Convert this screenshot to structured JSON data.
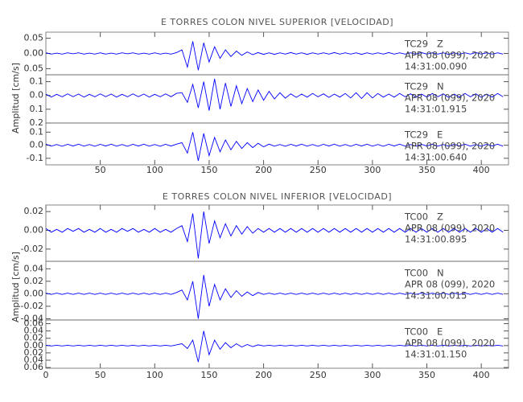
{
  "chart_data": [
    {
      "type": "line",
      "title": "E TORRES COLON NIVEL SUPERIOR [VELOCIDAD]",
      "y_label": "Amplitud [cm/s]",
      "xlim": [
        0,
        425
      ],
      "xticks": [
        50,
        100,
        150,
        200,
        250,
        300,
        350,
        400
      ],
      "x": [
        0,
        5,
        10,
        15,
        20,
        25,
        30,
        35,
        40,
        45,
        50,
        55,
        60,
        65,
        70,
        75,
        80,
        85,
        90,
        95,
        100,
        105,
        110,
        115,
        120,
        125,
        130,
        135,
        140,
        145,
        150,
        155,
        160,
        165,
        170,
        175,
        180,
        185,
        190,
        195,
        200,
        205,
        210,
        215,
        220,
        225,
        230,
        235,
        240,
        245,
        250,
        255,
        260,
        265,
        270,
        275,
        280,
        285,
        290,
        295,
        300,
        305,
        310,
        315,
        320,
        325,
        330,
        335,
        340,
        345,
        350,
        355,
        360,
        365,
        370,
        375,
        380,
        385,
        390,
        395,
        400,
        405,
        410,
        415,
        420
      ],
      "panels": [
        {
          "station": "TC29   Z",
          "date": "APR 08 (099), 2020",
          "time": "14:31:00.090",
          "ylim": [
            -0.07,
            0.07
          ],
          "yticks": [
            0.05,
            {
              "value": 0,
              "label": "0.00"
            },
            {
              "value": -0.05,
              "label": "0.05"
            }
          ],
          "series": [
            {
              "name": "TC29 Z",
              "color": "#0000ff",
              "values": [
                0.002,
                -0.002,
                0.001,
                -0.002,
                0.002,
                -0.001,
                0.002,
                -0.002,
                0.001,
                -0.002,
                0.002,
                -0.002,
                0.001,
                -0.002,
                0.002,
                -0.001,
                0.002,
                -0.002,
                0.001,
                -0.002,
                0.002,
                -0.002,
                0.001,
                -0.002,
                0.003,
                0.012,
                -0.045,
                0.04,
                -0.055,
                0.035,
                -0.028,
                0.022,
                -0.016,
                0.012,
                -0.01,
                0.008,
                -0.006,
                0.005,
                -0.004,
                0.003,
                -0.003,
                0.002,
                -0.003,
                0.002,
                -0.002,
                0.003,
                -0.002,
                0.002,
                -0.003,
                0.002,
                -0.002,
                0.002,
                -0.002,
                0.003,
                -0.002,
                0.002,
                -0.002,
                0.002,
                -0.003,
                0.002,
                -0.002,
                0.002,
                -0.002,
                0.003,
                -0.002,
                0.002,
                -0.002,
                0.002,
                -0.002,
                0.003,
                -0.002,
                0.002,
                -0.002,
                0.002,
                -0.003,
                0.002,
                -0.002,
                0.002,
                -0.002,
                0.003,
                -0.002,
                0.002,
                -0.002,
                0.002,
                -0.002
              ]
            }
          ]
        },
        {
          "station": "TC29   N",
          "date": "APR 08 (099), 2020",
          "time": "14:31:01.915",
          "ylim": [
            -0.2,
            0.15
          ],
          "yticks": [
            0.1,
            {
              "value": 0,
              "label": "0.0"
            },
            {
              "value": -0.1,
              "label": "0.1"
            },
            {
              "value": -0.2,
              "label": "0.2"
            }
          ],
          "series": [
            {
              "name": "TC29 N",
              "color": "#0000ff",
              "values": [
                0.01,
                -0.012,
                0.008,
                -0.01,
                0.012,
                -0.009,
                0.01,
                -0.012,
                0.008,
                -0.01,
                0.012,
                -0.009,
                0.01,
                -0.012,
                0.008,
                -0.01,
                0.012,
                -0.009,
                0.01,
                -0.012,
                0.008,
                -0.01,
                0.012,
                -0.009,
                0.015,
                0.02,
                -0.05,
                0.08,
                -0.09,
                0.1,
                -0.11,
                0.12,
                -0.1,
                0.09,
                -0.08,
                0.07,
                -0.06,
                0.05,
                -0.045,
                0.04,
                -0.035,
                0.03,
                -0.025,
                0.02,
                -0.02,
                0.012,
                -0.014,
                0.01,
                -0.012,
                0.014,
                -0.01,
                0.012,
                -0.014,
                0.01,
                -0.012,
                0.014,
                -0.018,
                0.02,
                -0.022,
                0.02,
                -0.018,
                0.014,
                -0.012,
                0.01,
                -0.012,
                0.014,
                -0.01,
                0.012,
                -0.014,
                0.01,
                -0.012,
                0.014,
                -0.01,
                0.012,
                -0.014,
                0.01,
                -0.012,
                0.014,
                -0.01,
                0.012,
                -0.014,
                0.01,
                -0.012,
                0.014,
                -0.01
              ]
            }
          ]
        },
        {
          "station": "TC29   E",
          "date": "APR 08 (099), 2020",
          "time": "14:31:00.640",
          "ylim": [
            -0.15,
            0.17
          ],
          "yticks": [
            0.1,
            {
              "value": 0,
              "label": "0.0"
            },
            -0.1
          ],
          "series": [
            {
              "name": "TC29 E",
              "color": "#0000ff",
              "values": [
                0.008,
                -0.007,
                0.006,
                -0.008,
                0.007,
                -0.006,
                0.008,
                -0.007,
                0.006,
                -0.008,
                0.007,
                -0.006,
                0.008,
                -0.007,
                0.006,
                -0.008,
                0.007,
                -0.006,
                0.008,
                -0.007,
                0.006,
                -0.008,
                0.007,
                -0.006,
                0.008,
                0.02,
                -0.06,
                0.1,
                -0.12,
                0.09,
                -0.08,
                0.06,
                -0.05,
                0.04,
                -0.035,
                0.03,
                -0.025,
                0.02,
                -0.018,
                0.015,
                -0.012,
                0.008,
                -0.007,
                0.006,
                -0.008,
                0.007,
                -0.006,
                0.008,
                -0.007,
                0.006,
                -0.008,
                0.007,
                -0.006,
                0.008,
                -0.007,
                0.006,
                -0.008,
                0.007,
                -0.006,
                0.008,
                -0.007,
                0.006,
                -0.008,
                0.007,
                -0.006,
                0.008,
                -0.007,
                0.006,
                -0.008,
                0.007,
                -0.006,
                0.008,
                -0.007,
                0.006,
                -0.008,
                0.007,
                -0.006,
                0.008,
                -0.007,
                0.006,
                -0.008,
                0.007,
                -0.006,
                0.008,
                -0.007
              ]
            }
          ]
        }
      ]
    },
    {
      "type": "line",
      "title": "E TORRES COLON NIVEL INFERIOR [VELOCIDAD]",
      "y_label": "Amplitud [cm/s]",
      "xlim": [
        0,
        425
      ],
      "xticks": [
        0,
        50,
        100,
        150,
        200,
        250,
        300,
        350,
        400
      ],
      "x": [
        0,
        5,
        10,
        15,
        20,
        25,
        30,
        35,
        40,
        45,
        50,
        55,
        60,
        65,
        70,
        75,
        80,
        85,
        90,
        95,
        100,
        105,
        110,
        115,
        120,
        125,
        130,
        135,
        140,
        145,
        150,
        155,
        160,
        165,
        170,
        175,
        180,
        185,
        190,
        195,
        200,
        205,
        210,
        215,
        220,
        225,
        230,
        235,
        240,
        245,
        250,
        255,
        260,
        265,
        270,
        275,
        280,
        285,
        290,
        295,
        300,
        305,
        310,
        315,
        320,
        325,
        330,
        335,
        340,
        345,
        350,
        355,
        360,
        365,
        370,
        375,
        380,
        385,
        390,
        395,
        400,
        405,
        410,
        415,
        420
      ],
      "panels": [
        {
          "station": "TC00   Z",
          "date": "APR 08 (099), 2020",
          "time": "14:31:00.895",
          "ylim": [
            -0.033,
            0.027
          ],
          "yticks": [
            0.02,
            {
              "value": 0,
              "label": "0.00"
            },
            -0.02
          ],
          "series": [
            {
              "name": "TC00 Z",
              "color": "#0000ff",
              "values": [
                0.002,
                -0.002,
                0.001,
                -0.002,
                0.002,
                -0.001,
                0.002,
                -0.002,
                0.001,
                -0.002,
                0.002,
                -0.002,
                0.001,
                -0.002,
                0.002,
                -0.001,
                0.002,
                -0.002,
                0.001,
                -0.002,
                0.002,
                -0.002,
                0.001,
                -0.002,
                0.002,
                0.005,
                -0.012,
                0.018,
                -0.03,
                0.02,
                -0.014,
                0.01,
                -0.008,
                0.007,
                -0.006,
                0.005,
                -0.004,
                0.004,
                -0.003,
                0.002,
                -0.002,
                0.002,
                -0.002,
                0.002,
                -0.002,
                0.002,
                -0.002,
                0.002,
                -0.002,
                0.002,
                -0.002,
                0.002,
                -0.002,
                0.002,
                -0.002,
                0.002,
                -0.002,
                0.002,
                -0.002,
                0.002,
                -0.002,
                0.002,
                -0.002,
                0.002,
                -0.002,
                0.002,
                -0.002,
                0.002,
                -0.002,
                0.002,
                -0.002,
                0.002,
                -0.002,
                0.002,
                -0.002,
                0.002,
                -0.002,
                0.002,
                -0.002,
                0.002,
                -0.002,
                0.002,
                -0.002,
                0.002,
                -0.002
              ]
            }
          ]
        },
        {
          "station": "TC00   N",
          "date": "APR 08 (099), 2020",
          "time": "14:31:00.015",
          "ylim": [
            -0.042,
            0.052
          ],
          "yticks": [
            0.04,
            0.02,
            {
              "value": 0,
              "label": "0.00"
            },
            -0.02,
            -0.04
          ],
          "series": [
            {
              "name": "TC00 N",
              "color": "#0000ff",
              "values": [
                0.001,
                -0.001,
                0.001,
                -0.001,
                0.001,
                -0.001,
                0.001,
                -0.001,
                0.001,
                -0.001,
                0.001,
                -0.001,
                0.001,
                -0.001,
                0.001,
                -0.001,
                0.001,
                -0.001,
                0.001,
                -0.001,
                0.001,
                -0.001,
                0.001,
                -0.001,
                0.002,
                0.006,
                -0.01,
                0.02,
                -0.04,
                0.03,
                -0.02,
                0.015,
                -0.01,
                0.008,
                -0.006,
                0.005,
                -0.004,
                0.003,
                -0.003,
                0.002,
                -0.001,
                0.001,
                -0.001,
                0.001,
                -0.001,
                0.001,
                -0.001,
                0.001,
                -0.001,
                0.001,
                -0.001,
                0.001,
                -0.001,
                0.001,
                -0.001,
                0.001,
                -0.001,
                0.001,
                -0.001,
                0.001,
                -0.001,
                0.001,
                -0.001,
                0.001,
                -0.001,
                0.001,
                -0.001,
                0.001,
                -0.001,
                0.001,
                -0.001,
                0.001,
                -0.001,
                0.001,
                -0.001,
                0.001,
                -0.001,
                0.001,
                -0.001,
                0.001,
                -0.001,
                0.001,
                -0.001,
                0.001,
                -0.001
              ]
            }
          ]
        },
        {
          "station": "TC00   E",
          "date": "APR 08 (099), 2020",
          "time": "14:31:01.150",
          "ylim": [
            -0.062,
            0.07
          ],
          "yticks": [
            0.06,
            0.04,
            0.02,
            {
              "value": 0,
              "label": "0.00"
            },
            {
              "value": -0.02,
              "label": "0.02"
            },
            {
              "value": -0.04,
              "label": "0.04"
            },
            {
              "value": -0.06,
              "label": "0.06"
            }
          ],
          "series": [
            {
              "name": "TC00 E",
              "color": "#0000ff",
              "values": [
                0.001,
                -0.001,
                0.001,
                -0.001,
                0.001,
                -0.001,
                0.001,
                -0.001,
                0.001,
                -0.001,
                0.001,
                -0.001,
                0.001,
                -0.001,
                0.001,
                -0.001,
                0.001,
                -0.001,
                0.001,
                -0.001,
                0.001,
                -0.001,
                0.001,
                -0.001,
                0.002,
                0.005,
                -0.008,
                0.015,
                -0.045,
                0.04,
                -0.025,
                0.015,
                -0.01,
                0.008,
                -0.006,
                0.005,
                -0.004,
                0.003,
                -0.003,
                0.002,
                -0.001,
                0.001,
                -0.001,
                0.001,
                -0.001,
                0.001,
                -0.001,
                0.001,
                -0.001,
                0.001,
                -0.001,
                0.001,
                -0.001,
                0.001,
                -0.001,
                0.001,
                -0.001,
                0.001,
                -0.001,
                0.001,
                -0.001,
                0.001,
                -0.001,
                0.001,
                -0.001,
                0.001,
                -0.001,
                0.001,
                -0.001,
                0.001,
                -0.001,
                0.001,
                -0.001,
                0.001,
                -0.001,
                0.001,
                -0.001,
                0.001,
                -0.001,
                0.001,
                -0.001,
                0.001,
                -0.001,
                0.001,
                -0.001
              ]
            }
          ]
        }
      ]
    }
  ]
}
